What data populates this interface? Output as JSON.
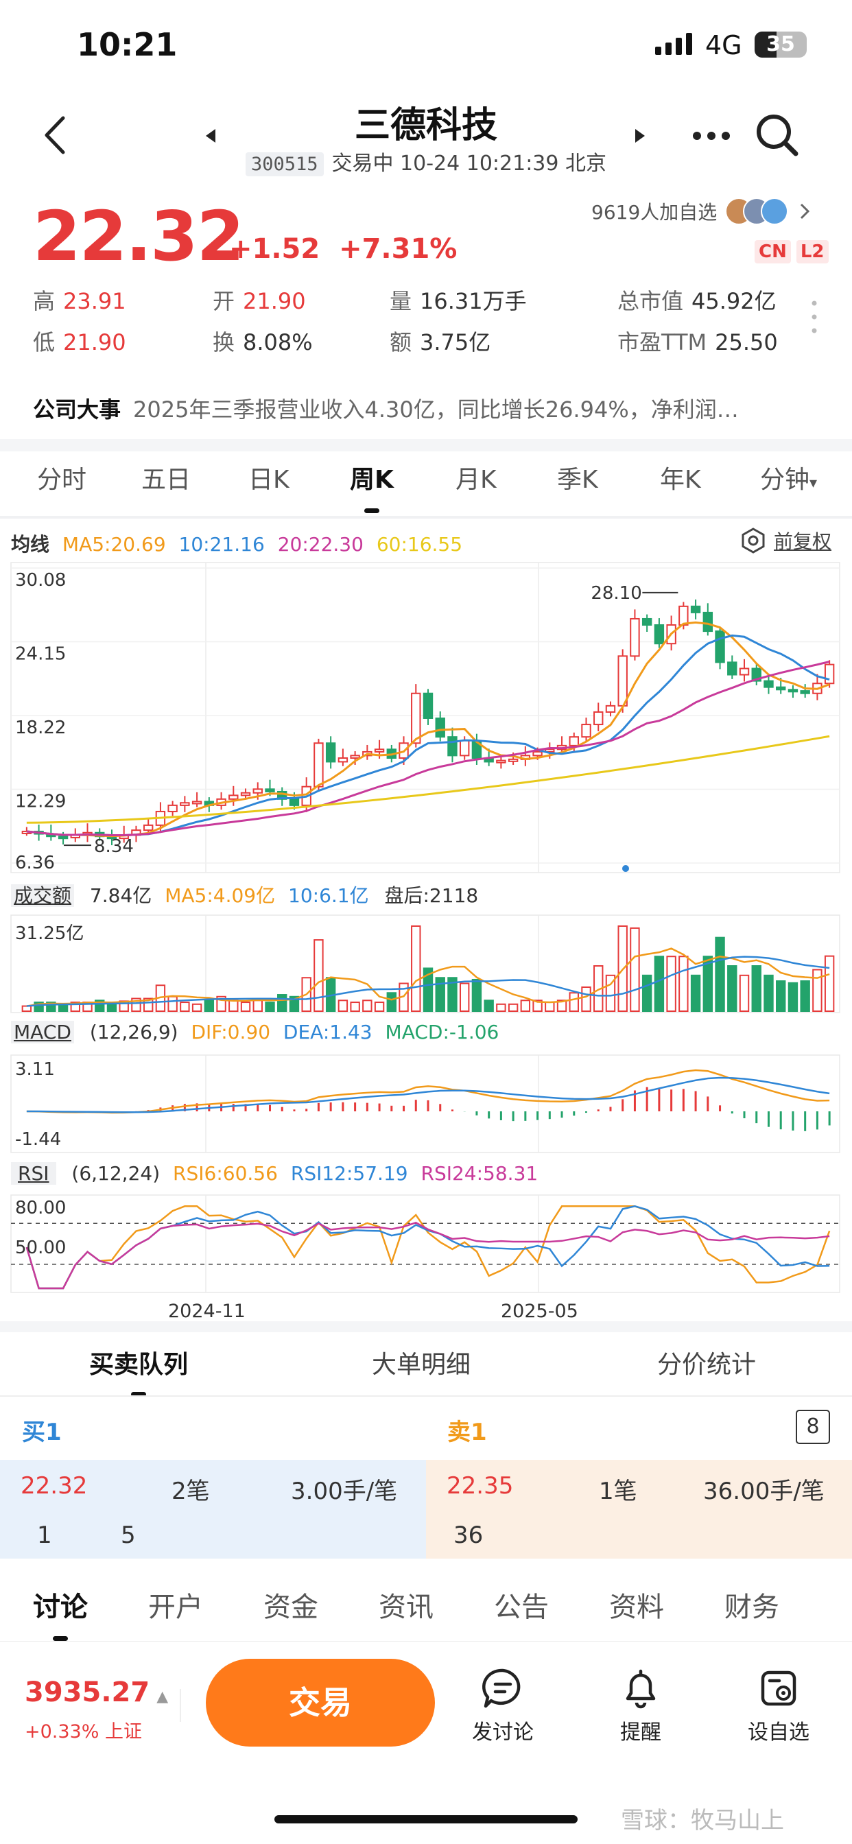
{
  "status_bar": {
    "time": "10:21",
    "network": "4G",
    "battery": "35"
  },
  "header": {
    "title": "三德科技",
    "code": "300515",
    "status_text": "交易中 10-24 10:21:39 北京"
  },
  "quote": {
    "price": "22.32",
    "change": "+1.52",
    "change_pct": "+7.31%",
    "followers": "9619人加自选",
    "tags": [
      "CN",
      "L2"
    ],
    "stats": {
      "high_label": "高",
      "high": "23.91",
      "open_label": "开",
      "open": "21.90",
      "volume_label": "量",
      "volume": "16.31万手",
      "mcap_label": "总市值",
      "mcap": "45.92亿",
      "low_label": "低",
      "low": "21.90",
      "turnover_label": "换",
      "turnover": "8.08%",
      "amount_label": "额",
      "amount": "3.75亿",
      "pe_label": "市盈TTM",
      "pe": "25.50"
    }
  },
  "notice": {
    "label": "公司大事",
    "text": "2025年三季报营业收入4.30亿，同比增长26.94%，净利润…"
  },
  "chart_tabs": [
    "分时",
    "五日",
    "日K",
    "周K",
    "月K",
    "季K",
    "年K",
    "分钟"
  ],
  "active_chart_tab": "周K",
  "indicators": {
    "ma_label": "均线",
    "ma5": "MA5:20.69",
    "ma10": "10:21.16",
    "ma20": "20:22.30",
    "ma60": "60:16.55",
    "adjust": "前复权",
    "vol_label": "成交额",
    "vol_value": "7.84亿",
    "vol_ma5": "MA5:4.09亿",
    "vol_ma10": "10:6.1亿",
    "vol_after": "盘后:2118",
    "vol_max": "31.25亿",
    "macd_label": "MACD",
    "macd_params": "(12,26,9)",
    "dif": "DIF:0.90",
    "dea": "DEA:1.43",
    "macd": "MACD:-1.06",
    "macd_top": "3.11",
    "macd_bottom": "-1.44",
    "rsi_label": "RSI",
    "rsi_params": "(6,12,24)",
    "rsi6": "RSI6:60.56",
    "rsi12": "RSI12:57.19",
    "rsi24": "RSI24:58.31",
    "rsi_80": "80.00",
    "rsi_50": "50.00"
  },
  "chart_data": {
    "type": "line",
    "title": "",
    "yticks": [
      "30.08",
      "24.15",
      "18.22",
      "12.29",
      "6.36"
    ],
    "ylim": [
      6.36,
      30.08
    ],
    "x_ticks": [
      "2024-11",
      "2025-05"
    ],
    "annotations": {
      "high": "28.10",
      "low": "8.34"
    },
    "candles_close": [
      8.9,
      8.7,
      8.5,
      8.4,
      8.6,
      8.8,
      8.5,
      8.34,
      8.6,
      9.0,
      9.4,
      10.5,
      11.0,
      11.2,
      11.3,
      11.0,
      11.5,
      11.8,
      12.0,
      12.3,
      12.1,
      11.5,
      11.0,
      12.5,
      16.0,
      14.5,
      14.8,
      15.0,
      15.3,
      15.5,
      14.8,
      16.0,
      20.0,
      18.0,
      16.5,
      15.0,
      16.2,
      14.8,
      14.5,
      14.6,
      14.7,
      15.0,
      15.3,
      15.5,
      15.8,
      16.5,
      17.5,
      18.5,
      19.0,
      23.0,
      26.0,
      25.5,
      24.0,
      25.5,
      27.0,
      26.5,
      25.0,
      22.5,
      21.5,
      22.0,
      21.0,
      20.5,
      20.3,
      20.2,
      20.0,
      20.8,
      22.32
    ],
    "ma5_last": 20.69,
    "ma10_last": 21.16,
    "ma20_last": 22.3,
    "ma60_last": 16.55
  },
  "orderbook": {
    "tabs": [
      "买卖队列",
      "大单明细",
      "分价统计"
    ],
    "buy_label": "买1",
    "sell_label": "卖1",
    "level_box": "8",
    "buy_price": "22.32",
    "buy_orders": "2笔",
    "buy_avg": "3.00手/笔",
    "buy_q1": "1",
    "buy_q2": "5",
    "sell_price": "22.35",
    "sell_orders": "1笔",
    "sell_avg": "36.00手/笔",
    "sell_q1": "36"
  },
  "bottom_tabs": [
    "讨论",
    "开户",
    "资金",
    "资讯",
    "公告",
    "资料",
    "财务"
  ],
  "bottom_bar": {
    "index_value": "3935.27",
    "index_change": "+0.33%",
    "index_name": "上证",
    "trade_label": "交易",
    "discuss_label": "发讨论",
    "alert_label": "提醒",
    "watch_label": "设自选"
  },
  "watermark": "雪球：牧马山上"
}
